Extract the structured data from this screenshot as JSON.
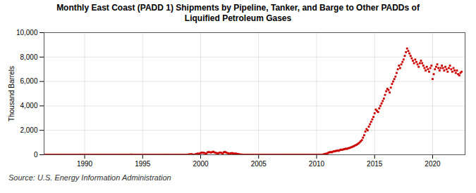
{
  "chart_data": {
    "type": "scatter",
    "title": "Monthly East Coast (PADD 1) Shipments by Pipeline, Tanker, and Barge to Other PADDs of\nLiquified Petroleum Gases",
    "ylabel": "Thousand Barrels",
    "source": "Source: U.S. Energy Information Administration",
    "color": "#cc0000",
    "marker": "square",
    "grid": true,
    "xlim": [
      1986.5,
      2022.8
    ],
    "ylim": [
      0,
      10000
    ],
    "xticks": [
      1990,
      1995,
      2000,
      2005,
      2010,
      2015,
      2020
    ],
    "yticks": [
      0,
      {
        "value": 2000,
        "label": "2,000"
      },
      {
        "value": 4000,
        "label": "4,000"
      },
      {
        "value": 6000,
        "label": "6,000"
      },
      {
        "value": 8000,
        "label": "8,000"
      },
      {
        "value": 10000,
        "label": "10,000"
      }
    ],
    "x": [
      1986.5,
      1986.6,
      1986.7,
      1986.8,
      1986.9,
      1987.0,
      1987.1,
      1987.2,
      1987.3,
      1987.4,
      1987.5,
      1987.6,
      1987.7,
      1987.8,
      1987.9,
      1988.0,
      1988.1,
      1988.2,
      1988.3,
      1988.4,
      1988.5,
      1988.6,
      1988.7,
      1988.8,
      1988.9,
      1989.0,
      1989.1,
      1989.2,
      1989.3,
      1989.4,
      1989.5,
      1989.6,
      1989.7,
      1989.8,
      1989.9,
      1990.0,
      1990.1,
      1990.2,
      1990.3,
      1990.4,
      1990.5,
      1990.6,
      1990.7,
      1990.8,
      1990.9,
      1991.0,
      1991.1,
      1991.2,
      1991.3,
      1991.4,
      1991.5,
      1991.6,
      1991.7,
      1991.8,
      1991.9,
      1992.0,
      1992.1,
      1992.2,
      1992.3,
      1992.4,
      1992.5,
      1992.6,
      1992.7,
      1992.8,
      1992.9,
      1993.0,
      1993.1,
      1993.2,
      1993.3,
      1993.4,
      1993.5,
      1993.6,
      1993.7,
      1993.8,
      1993.9,
      1994.0,
      1994.1,
      1994.2,
      1994.3,
      1994.4,
      1994.5,
      1994.6,
      1994.7,
      1994.8,
      1994.9,
      1995.0,
      1995.1,
      1995.2,
      1995.3,
      1995.4,
      1995.5,
      1995.6,
      1995.7,
      1995.8,
      1995.9,
      1996.0,
      1996.1,
      1996.2,
      1996.3,
      1996.4,
      1996.5,
      1996.6,
      1996.7,
      1996.8,
      1996.9,
      1997.0,
      1997.1,
      1997.2,
      1997.3,
      1997.4,
      1997.5,
      1997.6,
      1997.7,
      1997.8,
      1997.9,
      1998.0,
      1998.1,
      1998.2,
      1998.3,
      1998.4,
      1998.5,
      1998.6,
      1998.7,
      1998.8,
      1998.9,
      1999.0,
      1999.1,
      1999.2,
      1999.3,
      1999.4,
      1999.5,
      1999.6,
      1999.7,
      1999.8,
      1999.9,
      2000.0,
      2000.1,
      2000.2,
      2000.3,
      2000.4,
      2000.5,
      2000.6,
      2000.7,
      2000.8,
      2000.9,
      2001.0,
      2001.1,
      2001.2,
      2001.3,
      2001.4,
      2001.5,
      2001.6,
      2001.7,
      2001.8,
      2001.9,
      2002.0,
      2002.1,
      2002.2,
      2002.3,
      2002.4,
      2002.5,
      2002.6,
      2002.7,
      2002.8,
      2002.9,
      2003.0,
      2003.1,
      2003.2,
      2003.3,
      2003.4,
      2003.5,
      2003.6,
      2003.7,
      2003.8,
      2003.9,
      2004.0,
      2004.1,
      2004.2,
      2004.3,
      2004.4,
      2004.5,
      2004.6,
      2004.7,
      2004.8,
      2004.9,
      2005.0,
      2005.1,
      2005.2,
      2005.3,
      2005.4,
      2005.5,
      2005.6,
      2005.7,
      2005.8,
      2005.9,
      2006.0,
      2006.1,
      2006.2,
      2006.3,
      2006.4,
      2006.5,
      2006.6,
      2006.7,
      2006.8,
      2006.9,
      2007.0,
      2007.1,
      2007.2,
      2007.3,
      2007.4,
      2007.5,
      2007.6,
      2007.7,
      2007.8,
      2007.9,
      2008.0,
      2008.1,
      2008.2,
      2008.3,
      2008.4,
      2008.5,
      2008.6,
      2008.7,
      2008.8,
      2008.9,
      2009.0,
      2009.1,
      2009.2,
      2009.3,
      2009.4,
      2009.5,
      2009.6,
      2009.7,
      2009.8,
      2009.9,
      2010.0,
      2010.1,
      2010.2,
      2010.3,
      2010.4,
      2010.5,
      2010.6,
      2010.7,
      2010.8,
      2010.9,
      2011.0,
      2011.1,
      2011.2,
      2011.3,
      2011.4,
      2011.5,
      2011.6,
      2011.7,
      2011.8,
      2011.9,
      2012.0,
      2012.1,
      2012.2,
      2012.3,
      2012.4,
      2012.5,
      2012.6,
      2012.7,
      2012.8,
      2012.9,
      2013.0,
      2013.1,
      2013.2,
      2013.3,
      2013.4,
      2013.5,
      2013.6,
      2013.7,
      2013.8,
      2013.9,
      2014.0,
      2014.1,
      2014.2,
      2014.3,
      2014.4,
      2014.5,
      2014.6,
      2014.7,
      2014.8,
      2014.9,
      2015.0,
      2015.1,
      2015.2,
      2015.3,
      2015.4,
      2015.5,
      2015.6,
      2015.7,
      2015.8,
      2015.9,
      2016.0,
      2016.1,
      2016.2,
      2016.3,
      2016.4,
      2016.5,
      2016.6,
      2016.7,
      2016.8,
      2016.9,
      2017.0,
      2017.1,
      2017.2,
      2017.3,
      2017.4,
      2017.5,
      2017.6,
      2017.7,
      2017.8,
      2017.9,
      2018.0,
      2018.1,
      2018.2,
      2018.3,
      2018.4,
      2018.5,
      2018.6,
      2018.7,
      2018.8,
      2018.9,
      2019.0,
      2019.1,
      2019.2,
      2019.3,
      2019.4,
      2019.5,
      2019.6,
      2019.7,
      2019.8,
      2019.9,
      2020.0,
      2020.1,
      2020.2,
      2020.3,
      2020.4,
      2020.5,
      2020.6,
      2020.7,
      2020.8,
      2020.9,
      2021.0,
      2021.1,
      2021.2,
      2021.3,
      2021.4,
      2021.5,
      2021.6,
      2021.7,
      2021.8,
      2021.9,
      2022.0,
      2022.1,
      2022.2,
      2022.3,
      2022.4,
      2022.5
    ],
    "values": [
      0,
      0,
      0,
      0,
      0,
      0,
      0,
      0,
      0,
      0,
      0,
      0,
      0,
      0,
      0,
      0,
      0,
      0,
      0,
      0,
      0,
      0,
      0,
      0,
      0,
      0,
      0,
      0,
      0,
      0,
      0,
      0,
      0,
      0,
      0,
      0,
      0,
      0,
      0,
      0,
      0,
      0,
      0,
      0,
      0,
      0,
      0,
      0,
      0,
      0,
      0,
      0,
      0,
      0,
      0,
      0,
      0,
      0,
      0,
      0,
      0,
      0,
      0,
      0,
      0,
      0,
      0,
      0,
      0,
      0,
      0,
      0,
      0,
      0,
      0,
      15,
      5,
      0,
      0,
      0,
      0,
      0,
      0,
      0,
      0,
      0,
      0,
      0,
      0,
      0,
      0,
      0,
      0,
      0,
      0,
      0,
      0,
      0,
      0,
      0,
      0,
      0,
      0,
      0,
      0,
      0,
      0,
      0,
      0,
      0,
      0,
      0,
      0,
      0,
      0,
      0,
      0,
      0,
      0,
      0,
      0,
      0,
      0,
      0,
      0,
      40,
      30,
      50,
      20,
      10,
      5,
      60,
      80,
      100,
      60,
      140,
      180,
      160,
      150,
      120,
      90,
      200,
      220,
      200,
      180,
      220,
      250,
      190,
      150,
      130,
      100,
      160,
      180,
      150,
      100,
      200,
      230,
      180,
      140,
      110,
      80,
      120,
      140,
      110,
      80,
      100,
      80,
      60,
      40,
      20,
      15,
      10,
      5,
      0,
      0,
      5,
      0,
      0,
      0,
      0,
      0,
      0,
      0,
      0,
      0,
      0,
      0,
      0,
      0,
      0,
      0,
      0,
      0,
      0,
      0,
      0,
      0,
      0,
      0,
      0,
      0,
      0,
      0,
      0,
      0,
      0,
      0,
      0,
      0,
      0,
      0,
      0,
      0,
      0,
      0,
      0,
      0,
      0,
      0,
      0,
      0,
      0,
      0,
      0,
      0,
      0,
      0,
      0,
      0,
      0,
      0,
      0,
      0,
      0,
      0,
      0,
      0,
      0,
      0,
      0,
      0,
      30,
      60,
      80,
      100,
      150,
      200,
      220,
      200,
      250,
      280,
      300,
      320,
      350,
      320,
      380,
      420,
      400,
      440,
      460,
      500,
      480,
      520,
      550,
      580,
      620,
      660,
      700,
      750,
      800,
      850,
      920,
      1000,
      1100,
      1200,
      1400,
      1600,
      1900,
      2100,
      2000,
      2300,
      2500,
      2700,
      2900,
      3100,
      3400,
      3700,
      3600,
      3500,
      3800,
      4000,
      4200,
      4400,
      4600,
      4900,
      5200,
      5400,
      5300,
      5100,
      5500,
      5800,
      6000,
      6200,
      6400,
      6700,
      7000,
      7300,
      7100,
      7400,
      7600,
      7800,
      8100,
      8400,
      8700,
      8500,
      8300,
      8100,
      7900,
      7700,
      7500,
      7800,
      7600,
      7400,
      7200,
      7500,
      7700,
      7500,
      7300,
      7100,
      6900,
      7200,
      7000,
      6800,
      7100,
      7300,
      6200,
      6600,
      7000,
      7200,
      7400,
      7100,
      6900,
      7100,
      7300,
      7100,
      6900,
      7200,
      7000,
      6800,
      7100,
      7300,
      7000,
      6800,
      7100,
      6900,
      6700,
      6900,
      6600,
      6500,
      6700,
      6800
    ]
  }
}
